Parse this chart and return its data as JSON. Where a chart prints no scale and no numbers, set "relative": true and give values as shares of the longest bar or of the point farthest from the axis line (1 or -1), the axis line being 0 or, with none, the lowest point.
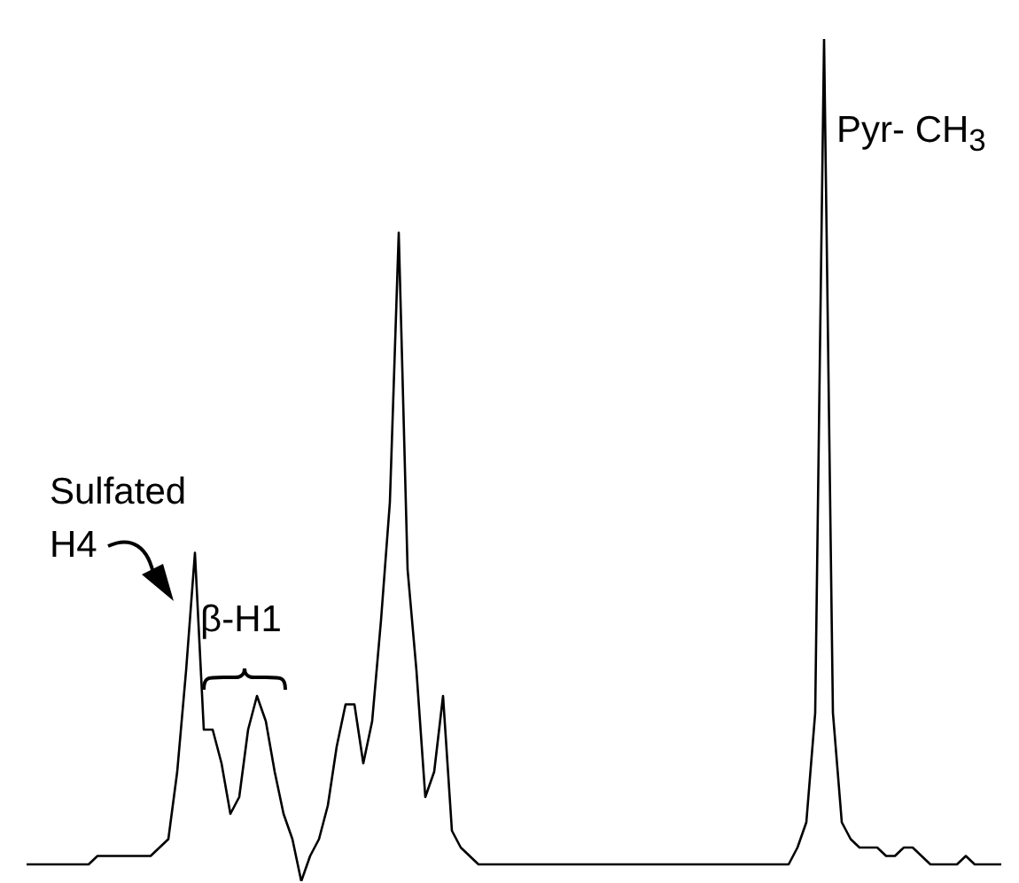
{
  "chart_data": {
    "type": "line",
    "relative": true,
    "legend": false,
    "grid": false,
    "tick_labels": false,
    "categories": [
      null,
      null,
      null,
      null,
      null,
      null,
      null,
      null,
      null,
      null,
      null,
      null,
      null,
      null,
      null,
      null,
      null,
      null,
      null,
      null,
      null,
      null,
      null,
      null,
      null,
      null,
      null,
      null,
      null,
      null,
      null,
      null,
      null,
      null,
      null,
      null,
      null,
      null,
      null,
      null,
      null,
      null,
      null,
      null,
      null,
      null,
      null,
      null,
      null,
      null,
      null,
      null,
      null,
      null,
      null,
      null,
      null,
      null,
      null,
      null,
      null,
      null,
      null,
      null,
      null,
      null,
      null,
      null,
      null,
      null,
      null,
      null,
      null,
      null,
      null,
      null,
      null,
      null,
      null,
      null,
      null,
      null,
      null,
      null,
      null,
      null,
      null,
      null,
      null,
      null,
      null,
      null,
      null,
      null,
      null,
      null,
      null,
      null,
      null,
      null,
      null,
      null,
      null,
      null,
      null,
      null,
      null,
      null,
      null,
      null,
      null
    ],
    "series": [
      {
        "color": "#000000",
        "values": [
          0.02,
          0.02,
          0.02,
          0.02,
          0.02,
          0.02,
          0.02,
          0.02,
          0.03,
          0.03,
          0.03,
          0.03,
          0.03,
          0.03,
          0.03,
          0.04,
          0.05,
          0.13,
          0.25,
          0.39,
          0.18,
          0.18,
          0.14,
          0.08,
          0.1,
          0.18,
          0.22,
          0.19,
          0.13,
          0.08,
          0.05,
          0,
          0.03,
          0.05,
          0.09,
          0.16,
          0.21,
          0.21,
          0.14,
          0.19,
          0.31,
          0.45,
          0.77,
          0.37,
          0.25,
          0.1,
          0.13,
          0.22,
          0.06,
          0.04,
          0.03,
          0.02,
          0.02,
          0.02,
          0.02,
          0.02,
          0.02,
          0.02,
          0.02,
          0.02,
          0.02,
          0.02,
          0.02,
          0.02,
          0.02,
          0.02,
          0.02,
          0.02,
          0.02,
          0.02,
          0.02,
          0.02,
          0.02,
          0.02,
          0.02,
          0.02,
          0.02,
          0.02,
          0.02,
          0.02,
          0.02,
          0.02,
          0.02,
          0.02,
          0.02,
          0.02,
          0.02,
          0.04,
          0.07,
          0.2,
          1,
          0.2,
          0.07,
          0.05,
          0.04,
          0.04,
          0.04,
          0.03,
          0.03,
          0.04,
          0.04,
          0.03,
          0.02,
          0.02,
          0.02,
          0.02,
          0.03,
          0.02,
          0.02,
          0.02,
          0.02
        ]
      }
    ],
    "annotations": [
      "Sulfated",
      "H4",
      "β-H1",
      "Pyr- CH$_{3}$"
    ]
  }
}
